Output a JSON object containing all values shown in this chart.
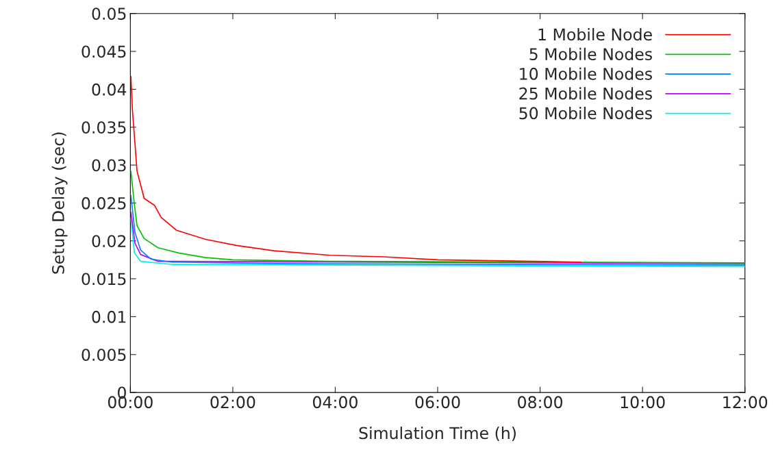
{
  "chart_data": {
    "type": "line",
    "xlabel": "Simulation Time (h)",
    "ylabel": "Setup Delay (sec)",
    "xlim": [
      0,
      12
    ],
    "ylim": [
      0,
      0.05
    ],
    "xticks": [
      {
        "value": 0,
        "label": "00:00"
      },
      {
        "value": 2,
        "label": "02:00"
      },
      {
        "value": 4,
        "label": "04:00"
      },
      {
        "value": 6,
        "label": "06:00"
      },
      {
        "value": 8,
        "label": "08:00"
      },
      {
        "value": 10,
        "label": "10:00"
      },
      {
        "value": 12,
        "label": "12:00"
      }
    ],
    "yticks": [
      0,
      0.005,
      0.01,
      0.015,
      0.02,
      0.025,
      0.03,
      0.035,
      0.04,
      0.045,
      0.05
    ],
    "legend": "top right",
    "grid": false,
    "marker": "none",
    "line_style": "solid",
    "series": [
      {
        "name": "1 Mobile Node",
        "color": "#ff0000",
        "x": [
          0.01,
          0.04,
          0.13,
          0.27,
          0.47,
          0.6,
          0.9,
          1.47,
          2.07,
          2.8,
          3.9,
          4.95,
          6.0,
          7.9,
          8.8
        ],
        "values": [
          0.0417,
          0.0373,
          0.0292,
          0.0256,
          0.0247,
          0.0231,
          0.0214,
          0.0202,
          0.0194,
          0.0187,
          0.0181,
          0.0179,
          0.0175,
          0.0173,
          0.0172
        ]
      },
      {
        "name": "5 Mobile Nodes",
        "color": "#00c000",
        "x": [
          0.01,
          0.08,
          0.13,
          0.27,
          0.54,
          0.94,
          1.47,
          2.0,
          3.9,
          12
        ],
        "values": [
          0.0292,
          0.0247,
          0.022,
          0.0203,
          0.0191,
          0.0184,
          0.0178,
          0.0175,
          0.0173,
          0.0171
        ]
      },
      {
        "name": "10 Mobile Nodes",
        "color": "#0080ff",
        "x": [
          0.01,
          0.09,
          0.2,
          0.4,
          0.8,
          2.8,
          12
        ],
        "values": [
          0.026,
          0.0211,
          0.0188,
          0.0176,
          0.0172,
          0.017,
          0.0168
        ]
      },
      {
        "name": "25 Mobile Nodes",
        "color": "#c000ff",
        "x": [
          0.01,
          0.09,
          0.2,
          0.54,
          12
        ],
        "values": [
          0.0238,
          0.0197,
          0.0182,
          0.0173,
          0.017
        ]
      },
      {
        "name": "50 Mobile Nodes",
        "color": "#00eeee",
        "x": [
          0.01,
          0.08,
          0.2,
          0.8,
          12
        ],
        "values": [
          0.0229,
          0.0184,
          0.0173,
          0.0169,
          0.0166
        ]
      }
    ]
  }
}
